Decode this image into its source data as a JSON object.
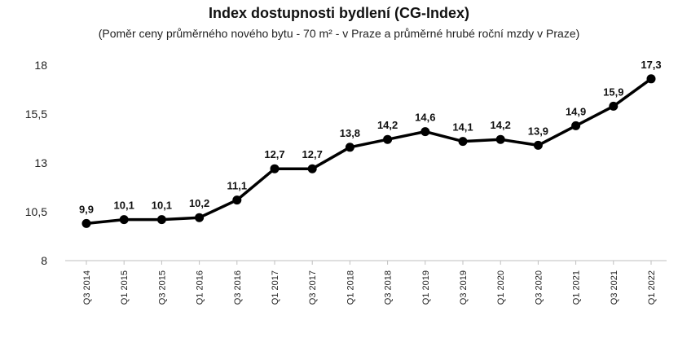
{
  "chart_data": {
    "type": "line",
    "title": "Index dostupnosti bydlení (CG-Index)",
    "subtitle": "(Poměr ceny průměrného nového bytu - 70 m² - v Praze a průměrné hrubé roční mzdy v Praze)",
    "categories": [
      "Q3 2014",
      "Q1 2015",
      "Q3 2015",
      "Q1 2016",
      "Q3 2016",
      "Q1 2017",
      "Q3 2017",
      "Q1 2018",
      "Q3 2018",
      "Q1 2019",
      "Q3 2019",
      "Q1 2020",
      "Q3 2020",
      "Q1 2021",
      "Q3 2021",
      "Q1 2022"
    ],
    "values": [
      9.9,
      10.1,
      10.1,
      10.2,
      11.1,
      12.7,
      12.7,
      13.8,
      14.2,
      14.6,
      14.1,
      14.2,
      13.9,
      14.9,
      15.9,
      17.3
    ],
    "value_labels": [
      "9,9",
      "10,1",
      "10,1",
      "10,2",
      "11,1",
      "12,7",
      "12,7",
      "13,8",
      "14,2",
      "14,6",
      "14,1",
      "14,2",
      "13,9",
      "14,9",
      "15,9",
      "17,3"
    ],
    "yticks": [
      8,
      10.5,
      13,
      15.5,
      18
    ],
    "ytick_labels": [
      "8",
      "10,5",
      "13",
      "15,5",
      "18"
    ],
    "ylim": [
      8,
      18
    ],
    "grid": false,
    "line_color": "#000000"
  }
}
